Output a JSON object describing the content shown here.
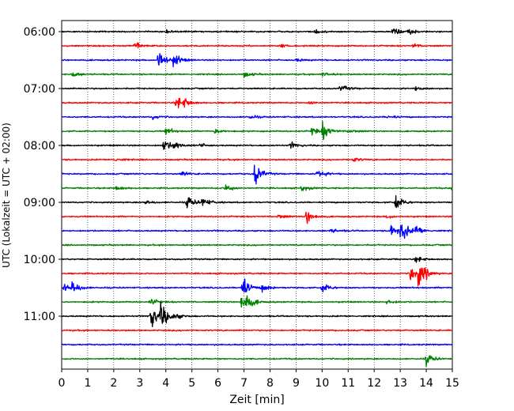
{
  "chart_data": {
    "type": "line",
    "title": "",
    "xlabel": "Zeit  [min]",
    "ylabel": "UTC (Lokalzeit = UTC + 02:00)",
    "xlim": [
      0,
      15
    ],
    "x_ticks": [
      "0",
      "1",
      "2",
      "3",
      "4",
      "5",
      "6",
      "7",
      "8",
      "9",
      "10",
      "11",
      "12",
      "13",
      "14",
      "15"
    ],
    "y_ticks": [
      "06:00",
      "07:00",
      "08:00",
      "09:00",
      "10:00",
      "11:00"
    ],
    "grid": "vertical dotted at each minute",
    "colors_cycle": [
      "#000000",
      "#ff0000",
      "#0000ff",
      "#008000"
    ],
    "traces": [
      {
        "start": "06:00",
        "color": "#000000",
        "events": [
          [
            4.0,
            0.12
          ],
          [
            9.7,
            0.15
          ],
          [
            12.7,
            0.3
          ],
          [
            13.3,
            0.2
          ]
        ]
      },
      {
        "start": "06:15",
        "color": "#ff0000",
        "events": [
          [
            2.8,
            0.35
          ],
          [
            8.4,
            0.12
          ],
          [
            13.5,
            0.12
          ]
        ]
      },
      {
        "start": "06:30",
        "color": "#0000ff",
        "events": [
          [
            3.7,
            0.85
          ],
          [
            4.3,
            0.4
          ],
          [
            9.0,
            0.1
          ]
        ]
      },
      {
        "start": "06:45",
        "color": "#008000",
        "events": [
          [
            0.4,
            0.2
          ],
          [
            7.0,
            0.18
          ],
          [
            10.0,
            0.15
          ]
        ]
      },
      {
        "start": "07:00",
        "color": "#000000",
        "events": [
          [
            10.7,
            0.25
          ],
          [
            13.6,
            0.12
          ]
        ]
      },
      {
        "start": "07:15",
        "color": "#ff0000",
        "events": [
          [
            4.4,
            0.45
          ],
          [
            4.7,
            0.2
          ],
          [
            9.5,
            0.12
          ]
        ]
      },
      {
        "start": "07:30",
        "color": "#0000ff",
        "events": [
          [
            3.5,
            0.12
          ],
          [
            7.2,
            0.12
          ],
          [
            12.5,
            0.1
          ]
        ]
      },
      {
        "start": "07:45",
        "color": "#008000",
        "events": [
          [
            4.0,
            0.25
          ],
          [
            5.9,
            0.2
          ],
          [
            10.0,
            0.55
          ],
          [
            9.6,
            0.25
          ],
          [
            11.0,
            0.15
          ]
        ]
      },
      {
        "start": "08:00",
        "color": "#000000",
        "events": [
          [
            3.9,
            0.45
          ],
          [
            4.3,
            0.25
          ],
          [
            8.8,
            0.2
          ],
          [
            5.3,
            0.12
          ]
        ]
      },
      {
        "start": "08:15",
        "color": "#ff0000",
        "events": [
          [
            2.0,
            0.12
          ],
          [
            11.2,
            0.15
          ]
        ]
      },
      {
        "start": "08:30",
        "color": "#0000ff",
        "events": [
          [
            7.4,
            0.8
          ],
          [
            9.8,
            0.35
          ],
          [
            4.6,
            0.15
          ]
        ]
      },
      {
        "start": "08:45",
        "color": "#008000",
        "events": [
          [
            2.1,
            0.15
          ],
          [
            6.3,
            0.3
          ],
          [
            9.2,
            0.2
          ],
          [
            15.0,
            0.2
          ]
        ]
      },
      {
        "start": "09:00",
        "color": "#000000",
        "events": [
          [
            4.8,
            0.45
          ],
          [
            5.4,
            0.3
          ],
          [
            12.8,
            0.5
          ],
          [
            3.2,
            0.15
          ]
        ]
      },
      {
        "start": "09:15",
        "color": "#ff0000",
        "events": [
          [
            9.4,
            0.5
          ],
          [
            8.3,
            0.15
          ],
          [
            12.5,
            0.12
          ]
        ]
      },
      {
        "start": "09:30",
        "color": "#0000ff",
        "events": [
          [
            12.6,
            0.45
          ],
          [
            13.0,
            0.75
          ],
          [
            13.6,
            0.3
          ],
          [
            10.3,
            0.15
          ]
        ]
      },
      {
        "start": "09:45",
        "color": "#008000",
        "events": []
      },
      {
        "start": "10:00",
        "color": "#000000",
        "events": [
          [
            13.6,
            0.2
          ]
        ]
      },
      {
        "start": "10:15",
        "color": "#ff0000",
        "events": [
          [
            13.7,
            1.0
          ],
          [
            13.4,
            0.55
          ]
        ]
      },
      {
        "start": "10:30",
        "color": "#0000ff",
        "events": [
          [
            0.4,
            0.4
          ],
          [
            6.9,
            0.8
          ],
          [
            7.7,
            0.3
          ],
          [
            10.0,
            0.3
          ],
          [
            0.1,
            0.3
          ]
        ]
      },
      {
        "start": "10:45",
        "color": "#008000",
        "events": [
          [
            6.9,
            0.6
          ],
          [
            7.1,
            0.35
          ],
          [
            3.4,
            0.2
          ],
          [
            12.5,
            0.15
          ]
        ]
      },
      {
        "start": "11:00",
        "color": "#000000",
        "events": [
          [
            3.4,
            0.9
          ],
          [
            3.8,
            0.75
          ],
          [
            4.3,
            0.2
          ]
        ]
      },
      {
        "start": "11:15",
        "color": "#ff0000",
        "events": []
      },
      {
        "start": "11:30",
        "color": "#0000ff",
        "events": []
      },
      {
        "start": "11:45",
        "color": "#008000",
        "events": [
          [
            14.0,
            0.35
          ]
        ]
      }
    ]
  }
}
